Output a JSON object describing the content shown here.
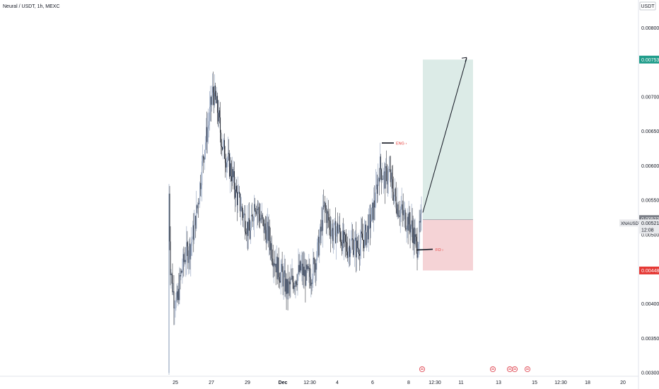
{
  "symbol_title": "Neural / USDT, 1h, MEXC",
  "currency_label": "USDT",
  "colors": {
    "up": "#7b8fb0",
    "down": "#131722",
    "target_fill": "#dcebe7",
    "stop_fill": "#f5d3d6",
    "target_badge": "#1f9c8a",
    "stop_badge": "#e53935",
    "price_badge": "#7a7e86",
    "marker_text": "#e53935",
    "event_icon": "#e04b56"
  },
  "chart_data": {
    "type": "candlestick",
    "ylim": [
      0.00295,
      0.0083
    ],
    "y_ticks": [
      "0.008000",
      "0.007000",
      "0.006500",
      "0.006000",
      "0.005500",
      "0.005000",
      "0.004000",
      "0.003500",
      "0.003000"
    ],
    "x_ticks": [
      "25",
      "27",
      "29",
      "Dec",
      "12:30",
      "4",
      "6",
      "8",
      "12:30",
      "11",
      "13",
      "15",
      "12:30",
      "18",
      "20"
    ],
    "price_path": [
      [
        0,
        0.003
      ],
      [
        0,
        0.0056
      ],
      [
        1,
        0.0046
      ],
      [
        4,
        0.0041
      ],
      [
        7,
        0.004
      ],
      [
        10,
        0.0044
      ],
      [
        14,
        0.0047
      ],
      [
        18,
        0.0048
      ],
      [
        22,
        0.0051
      ],
      [
        26,
        0.0056
      ],
      [
        30,
        0.0062
      ],
      [
        34,
        0.0066
      ],
      [
        38,
        0.0071
      ],
      [
        42,
        0.0068
      ],
      [
        46,
        0.0063
      ],
      [
        50,
        0.0061
      ],
      [
        54,
        0.0059
      ],
      [
        58,
        0.0056
      ],
      [
        62,
        0.0054
      ],
      [
        66,
        0.0052
      ],
      [
        70,
        0.005
      ],
      [
        74,
        0.0055
      ],
      [
        78,
        0.0053
      ],
      [
        82,
        0.0051
      ],
      [
        86,
        0.005
      ],
      [
        90,
        0.0047
      ],
      [
        94,
        0.0045
      ],
      [
        98,
        0.0044
      ],
      [
        102,
        0.0042
      ],
      [
        106,
        0.0043
      ],
      [
        110,
        0.0044
      ],
      [
        114,
        0.0045
      ],
      [
        118,
        0.0044
      ],
      [
        122,
        0.0044
      ],
      [
        126,
        0.0046
      ],
      [
        130,
        0.0049
      ],
      [
        134,
        0.0054
      ],
      [
        138,
        0.0052
      ],
      [
        142,
        0.005
      ],
      [
        146,
        0.0051
      ],
      [
        150,
        0.0049
      ],
      [
        154,
        0.0048
      ],
      [
        158,
        0.0049
      ],
      [
        162,
        0.0048
      ],
      [
        166,
        0.0049
      ],
      [
        170,
        0.005
      ],
      [
        174,
        0.0052
      ],
      [
        178,
        0.0055
      ],
      [
        182,
        0.006
      ],
      [
        186,
        0.0058
      ],
      [
        190,
        0.0059
      ],
      [
        194,
        0.0056
      ],
      [
        198,
        0.0054
      ],
      [
        202,
        0.0053
      ],
      [
        206,
        0.0052
      ],
      [
        210,
        0.0051
      ],
      [
        214,
        0.0048
      ],
      [
        218,
        0.00522
      ]
    ],
    "current_price": "0.005219",
    "current_price_time": "12:08",
    "last_price": "0.005228",
    "target_price": "0.007539",
    "stop_price": "0.004483",
    "symbol_short": "XNAUSDT",
    "eng_label": "ENG ›",
    "fo_label": "FO ›",
    "position": {
      "entry": 0.00522,
      "target": 0.007539,
      "stop": 0.004483
    }
  }
}
